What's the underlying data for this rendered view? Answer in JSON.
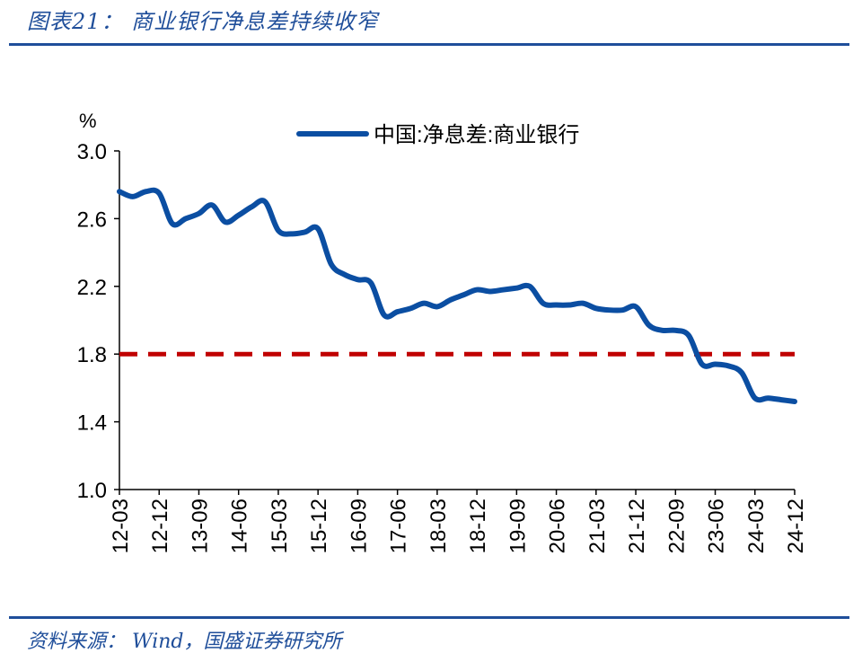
{
  "header": {
    "title": "图表21： 商业银行净息差持续收窄"
  },
  "footer": {
    "source": "资料来源： Wind，国盛证券研究所"
  },
  "colors": {
    "accent": "#1f4e9a",
    "series": "#0b4ea2",
    "reference": "#c00000"
  },
  "chart_data": {
    "type": "line",
    "title": "",
    "xlabel": "",
    "ylabel": "%",
    "ylim": [
      1.0,
      3.0
    ],
    "yticks": [
      "3.0",
      "2.6",
      "2.2",
      "1.8",
      "1.4",
      "1.0"
    ],
    "grid": false,
    "legend_position": "top-right",
    "x_tick_labels": [
      "12-03",
      "12-12",
      "13-09",
      "14-06",
      "15-03",
      "15-12",
      "16-09",
      "17-06",
      "18-03",
      "18-12",
      "19-09",
      "20-06",
      "21-03",
      "21-12",
      "22-09",
      "23-06",
      "24-03",
      "24-12"
    ],
    "series": [
      {
        "name": "中国:净息差:商业银行",
        "x": [
          "12-03",
          "12-06",
          "12-09",
          "12-12",
          "13-03",
          "13-06",
          "13-09",
          "13-12",
          "14-03",
          "14-06",
          "14-09",
          "14-12",
          "15-03",
          "15-06",
          "15-09",
          "15-12",
          "16-03",
          "16-06",
          "16-09",
          "16-12",
          "17-03",
          "17-06",
          "17-09",
          "17-12",
          "18-03",
          "18-06",
          "18-09",
          "18-12",
          "19-03",
          "19-06",
          "19-09",
          "19-12",
          "20-03",
          "20-06",
          "20-09",
          "20-12",
          "21-03",
          "21-06",
          "21-09",
          "21-12",
          "22-03",
          "22-06",
          "22-09",
          "22-12",
          "23-03",
          "23-06",
          "23-09",
          "23-12",
          "24-03",
          "24-06",
          "24-09",
          "24-12"
        ],
        "values": [
          2.76,
          2.73,
          2.76,
          2.75,
          2.57,
          2.6,
          2.63,
          2.68,
          2.58,
          2.62,
          2.67,
          2.7,
          2.53,
          2.51,
          2.52,
          2.54,
          2.33,
          2.27,
          2.24,
          2.22,
          2.03,
          2.05,
          2.07,
          2.1,
          2.08,
          2.12,
          2.15,
          2.18,
          2.17,
          2.18,
          2.19,
          2.2,
          2.1,
          2.09,
          2.09,
          2.1,
          2.07,
          2.06,
          2.06,
          2.08,
          1.97,
          1.94,
          1.94,
          1.91,
          1.74,
          1.74,
          1.73,
          1.69,
          1.54,
          1.54,
          1.53,
          1.52
        ]
      }
    ],
    "reference_line": {
      "y": 1.8,
      "style": "dashed"
    }
  }
}
